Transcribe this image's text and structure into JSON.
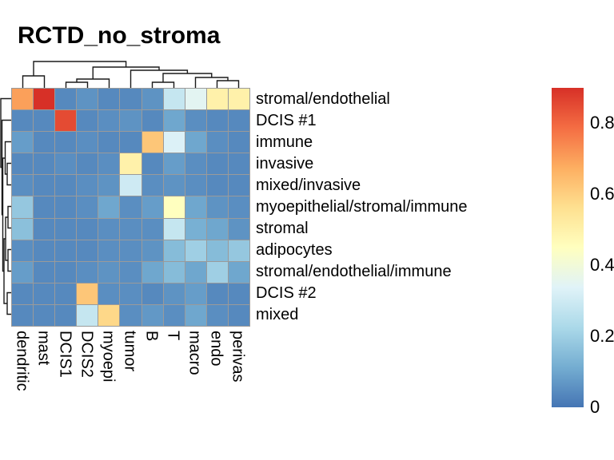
{
  "title": "RCTD_no_stroma",
  "chart_data": {
    "type": "heatmap",
    "title": "RCTD_no_stroma",
    "rows": [
      "stromal/endothelial",
      "DCIS #1",
      "immune",
      "invasive",
      "mixed/invasive",
      "myoepithelial/stromal/immune",
      "stromal",
      "adipocytes",
      "stromal/endothelial/immune",
      "DCIS #2",
      "mixed"
    ],
    "columns": [
      "dendritic",
      "mast",
      "DCIS1",
      "DCIS2",
      "myoepi",
      "tumor",
      "B",
      "T",
      "macro",
      "endo",
      "perivas"
    ],
    "values": [
      [
        0.7,
        0.9,
        0.04,
        0.06,
        0.04,
        0.04,
        0.06,
        0.28,
        0.35,
        0.5,
        0.5
      ],
      [
        0.04,
        0.04,
        0.85,
        0.04,
        0.05,
        0.06,
        0.04,
        0.1,
        0.05,
        0.04,
        0.04
      ],
      [
        0.08,
        0.04,
        0.04,
        0.05,
        0.04,
        0.04,
        0.62,
        0.33,
        0.1,
        0.05,
        0.04
      ],
      [
        0.04,
        0.04,
        0.05,
        0.04,
        0.05,
        0.5,
        0.04,
        0.08,
        0.05,
        0.04,
        0.04
      ],
      [
        0.05,
        0.04,
        0.04,
        0.05,
        0.06,
        0.3,
        0.05,
        0.06,
        0.05,
        0.04,
        0.04
      ],
      [
        0.18,
        0.04,
        0.04,
        0.05,
        0.1,
        0.05,
        0.08,
        0.45,
        0.1,
        0.06,
        0.05
      ],
      [
        0.16,
        0.04,
        0.04,
        0.04,
        0.05,
        0.05,
        0.05,
        0.28,
        0.12,
        0.1,
        0.06
      ],
      [
        0.05,
        0.04,
        0.04,
        0.04,
        0.05,
        0.05,
        0.06,
        0.15,
        0.2,
        0.15,
        0.18
      ],
      [
        0.08,
        0.04,
        0.04,
        0.05,
        0.06,
        0.05,
        0.1,
        0.15,
        0.1,
        0.2,
        0.1
      ],
      [
        0.04,
        0.04,
        0.04,
        0.62,
        0.05,
        0.05,
        0.04,
        0.06,
        0.08,
        0.04,
        0.04
      ],
      [
        0.04,
        0.04,
        0.04,
        0.28,
        0.58,
        0.05,
        0.07,
        0.05,
        0.1,
        0.05,
        0.04
      ]
    ],
    "colorbar": {
      "min": 0,
      "max": 0.9,
      "ticks": [
        0.8,
        0.6,
        0.4,
        0.2,
        0
      ]
    },
    "colormap": {
      "name": "RdYlBu_r",
      "stops": [
        "#4575B4",
        "#74ADD1",
        "#ABD9E9",
        "#E0F3F8",
        "#FFFFBF",
        "#FEE090",
        "#FDAE61",
        "#F46D43",
        "#D73027"
      ]
    },
    "grid_line_color": "#9a9a9a",
    "legend_position": "right",
    "dendrograms": [
      "columns-top",
      "rows-left"
    ]
  }
}
